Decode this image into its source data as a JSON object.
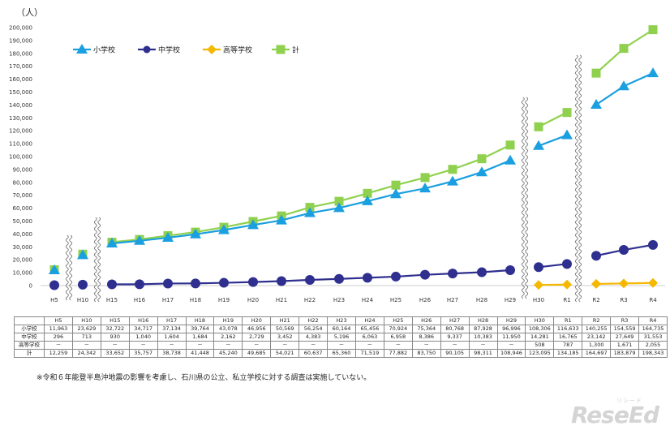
{
  "chart_data": {
    "type": "line",
    "unit_label": "（人）",
    "categories": [
      "H5",
      "H10",
      "H15",
      "H16",
      "H17",
      "H18",
      "H19",
      "H20",
      "H21",
      "H22",
      "H23",
      "H24",
      "H25",
      "H26",
      "H27",
      "H28",
      "H29",
      "H30",
      "R1",
      "R2",
      "R3",
      "R4"
    ],
    "y_ticks": [
      "0",
      "10,000",
      "20,000",
      "30,000",
      "40,000",
      "50,000",
      "60,000",
      "70,000",
      "80,000",
      "90,000",
      "100,000",
      "110,000",
      "120,000",
      "130,000",
      "140,000",
      "150,000",
      "160,000",
      "170,000",
      "180,000",
      "190,000",
      "200,000"
    ],
    "ylim": [
      0,
      200000
    ],
    "legend_position": "top-left",
    "series": [
      {
        "name": "小学校",
        "color": "#1a9fe0",
        "marker": "triangle",
        "values": [
          11963,
          23629,
          32722,
          34717,
          37134,
          39764,
          43078,
          46956,
          50569,
          56254,
          60164,
          65456,
          70924,
          75364,
          80768,
          87928,
          96996,
          108306,
          116633,
          140255,
          154559,
          164735
        ]
      },
      {
        "name": "中学校",
        "color": "#2e2f8f",
        "marker": "circle",
        "values": [
          296,
          713,
          930,
          1040,
          1604,
          1684,
          2162,
          2729,
          3452,
          4383,
          5196,
          6063,
          6958,
          8386,
          9337,
          10383,
          11950,
          14281,
          16765,
          23142,
          27649,
          31553
        ]
      },
      {
        "name": "高等学校",
        "color": "#f5b800",
        "marker": "diamond",
        "values": [
          null,
          null,
          null,
          null,
          null,
          null,
          null,
          null,
          null,
          null,
          null,
          null,
          null,
          null,
          null,
          null,
          null,
          508,
          787,
          1300,
          1671,
          2055
        ]
      },
      {
        "name": "計",
        "color": "#8fd14f",
        "marker": "square",
        "values": [
          12259,
          24342,
          33652,
          35757,
          38738,
          41448,
          45240,
          49685,
          54021,
          60637,
          65360,
          71519,
          77882,
          83750,
          90105,
          98311,
          108946,
          123095,
          134185,
          164697,
          183879,
          198343
        ]
      }
    ]
  },
  "table": {
    "headers": [
      "",
      "H5",
      "H10",
      "H15",
      "H16",
      "H17",
      "H18",
      "H19",
      "H20",
      "H21",
      "H22",
      "H23",
      "H24",
      "H25",
      "H26",
      "H27",
      "H28",
      "H29",
      "H30",
      "R1",
      "R2",
      "R3",
      "R4"
    ],
    "rows": [
      [
        "小学校",
        "11,963",
        "23,629",
        "32,722",
        "34,717",
        "37,134",
        "39,764",
        "43,078",
        "46,956",
        "50,569",
        "56,254",
        "60,164",
        "65,456",
        "70,924",
        "75,364",
        "80,768",
        "87,928",
        "96,996",
        "108,306",
        "116,633",
        "140,255",
        "154,559",
        "164,735"
      ],
      [
        "中学校",
        "296",
        "713",
        "930",
        "1,040",
        "1,604",
        "1,684",
        "2,162",
        "2,729",
        "3,452",
        "4,383",
        "5,196",
        "6,063",
        "6,958",
        "8,386",
        "9,337",
        "10,383",
        "11,950",
        "14,281",
        "16,765",
        "23,142",
        "27,649",
        "31,553"
      ],
      [
        "高等学校",
        "－",
        "－",
        "－",
        "－",
        "－",
        "－",
        "－",
        "－",
        "－",
        "－",
        "－",
        "－",
        "－",
        "－",
        "－",
        "－",
        "－",
        "508",
        "787",
        "1,300",
        "1,671",
        "2,055"
      ],
      [
        "計",
        "12,259",
        "24,342",
        "33,652",
        "35,757",
        "38,738",
        "41,448",
        "45,240",
        "49,685",
        "54,021",
        "60,637",
        "65,360",
        "71,519",
        "77,882",
        "83,750",
        "90,105",
        "98,311",
        "108,946",
        "123,095",
        "134,185",
        "164,697",
        "183,879",
        "198,343"
      ]
    ]
  },
  "note": "※令和６年能登半島沖地震の影響を考慮し、石川県の公立、私立学校に対する調査は実施していない。",
  "watermark": {
    "small": "リシード",
    "big": "ReseEd"
  }
}
